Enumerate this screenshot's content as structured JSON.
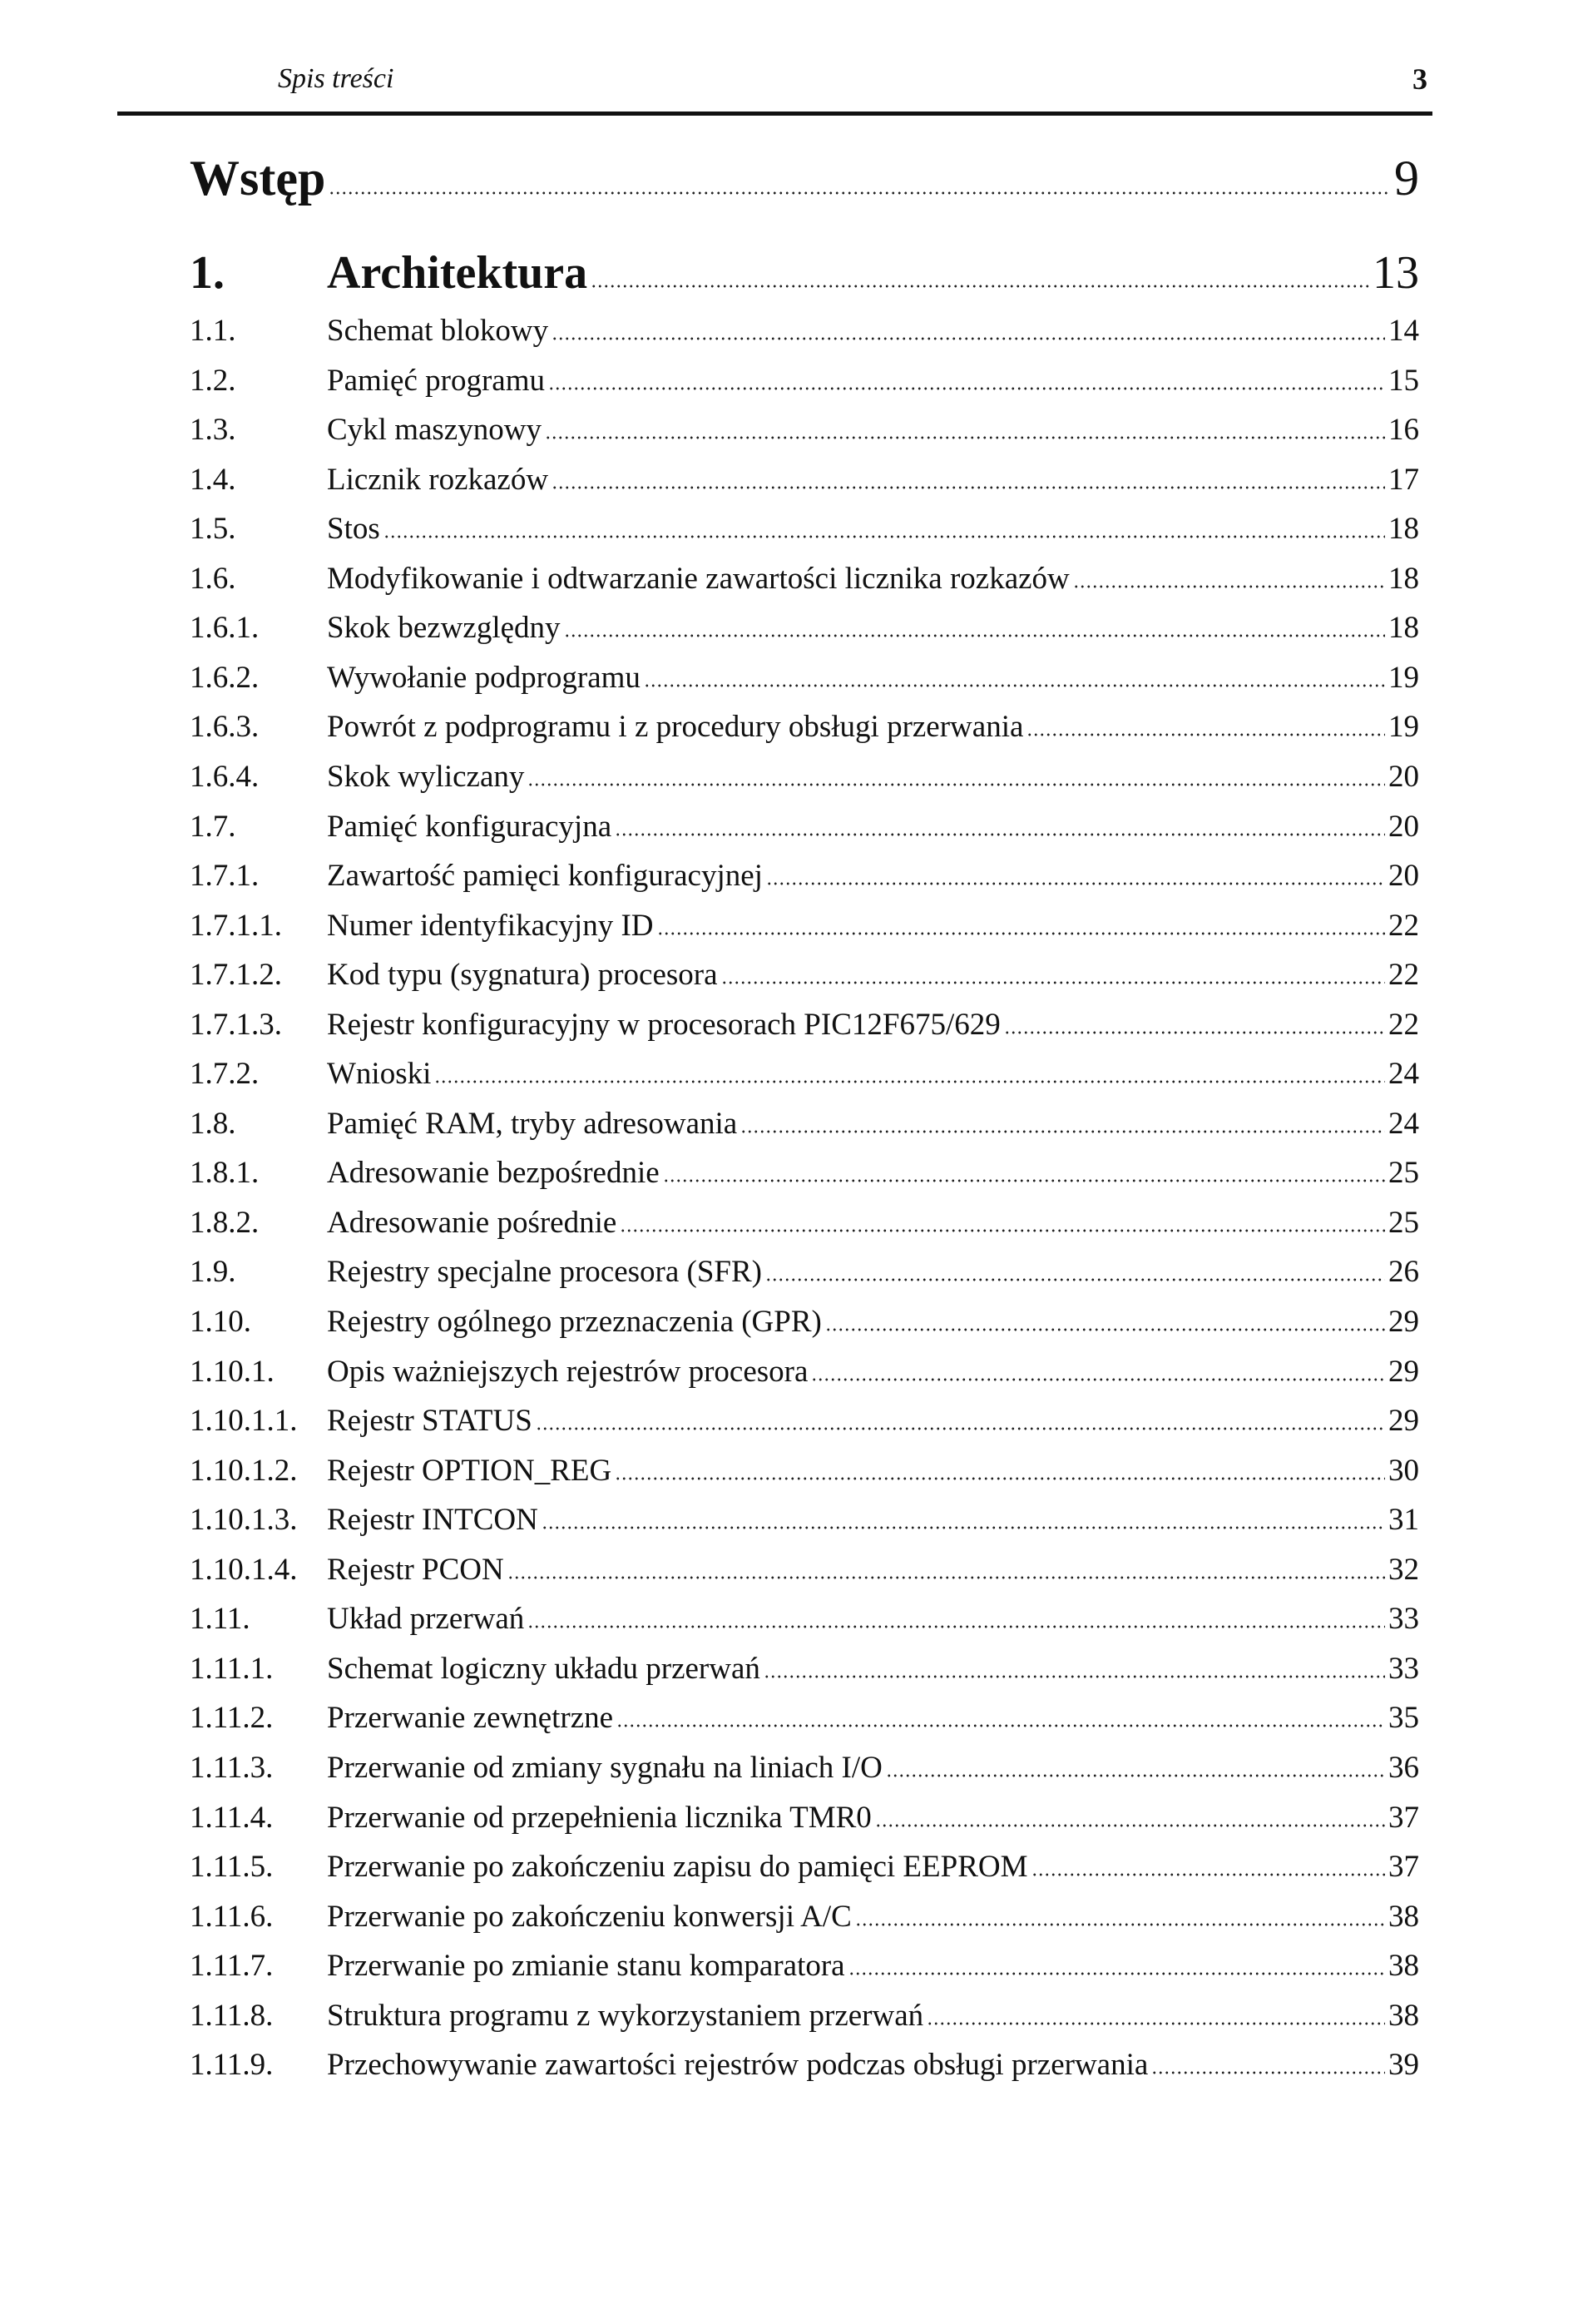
{
  "header": {
    "title": "Spis treści",
    "page_number": "3"
  },
  "intro": {
    "title": "Wstęp",
    "page": "9"
  },
  "chapter": {
    "number": "1.",
    "title": "Architektura",
    "page": "13"
  },
  "entries": [
    {
      "num": "1.1.",
      "title": "Schemat blokowy",
      "page": "14"
    },
    {
      "num": "1.2.",
      "title": "Pamięć programu",
      "page": "15"
    },
    {
      "num": "1.3.",
      "title": "Cykl maszynowy",
      "page": "16"
    },
    {
      "num": "1.4.",
      "title": "Licznik rozkazów",
      "page": "17"
    },
    {
      "num": "1.5.",
      "title": "Stos",
      "page": "18"
    },
    {
      "num": "1.6.",
      "title": "Modyfikowanie i odtwarzanie zawartości licznika rozkazów",
      "page": "18"
    },
    {
      "num": "1.6.1.",
      "title": "Skok bezwzględny",
      "page": "18"
    },
    {
      "num": "1.6.2.",
      "title": "Wywołanie podprogramu",
      "page": "19"
    },
    {
      "num": "1.6.3.",
      "title": "Powrót z podprogramu i z procedury obsługi przerwania",
      "page": "19"
    },
    {
      "num": "1.6.4.",
      "title": "Skok wyliczany",
      "page": "20"
    },
    {
      "num": "1.7.",
      "title": "Pamięć konfiguracyjna",
      "page": "20"
    },
    {
      "num": "1.7.1.",
      "title": "Zawartość pamięci konfiguracyjnej",
      "page": "20"
    },
    {
      "num": "1.7.1.1.",
      "title": "Numer identyfikacyjny ID",
      "page": "22"
    },
    {
      "num": "1.7.1.2.",
      "title": "Kod typu (sygnatura) procesora",
      "page": "22"
    },
    {
      "num": "1.7.1.3.",
      "title": "Rejestr konfiguracyjny w procesorach PIC12F675/629",
      "page": "22"
    },
    {
      "num": "1.7.2.",
      "title": "Wnioski",
      "page": "24"
    },
    {
      "num": "1.8.",
      "title": "Pamięć RAM, tryby adresowania",
      "page": "24"
    },
    {
      "num": "1.8.1.",
      "title": "Adresowanie bezpośrednie",
      "page": "25"
    },
    {
      "num": "1.8.2.",
      "title": "Adresowanie pośrednie",
      "page": "25"
    },
    {
      "num": "1.9.",
      "title": "Rejestry specjalne procesora (SFR)",
      "page": "26"
    },
    {
      "num": "1.10.",
      "title": "Rejestry ogólnego przeznaczenia (GPR)",
      "page": "29"
    },
    {
      "num": "1.10.1.",
      "title": "Opis ważniejszych rejestrów procesora",
      "page": "29"
    },
    {
      "num": "1.10.1.1.",
      "title": "Rejestr STATUS",
      "page": "29"
    },
    {
      "num": "1.10.1.2.",
      "title": "Rejestr OPTION_REG",
      "page": "30"
    },
    {
      "num": "1.10.1.3.",
      "title": "Rejestr INTCON",
      "page": "31"
    },
    {
      "num": "1.10.1.4.",
      "title": "Rejestr PCON",
      "page": "32"
    },
    {
      "num": "1.11.",
      "title": "Układ przerwań",
      "page": "33"
    },
    {
      "num": "1.11.1.",
      "title": "Schemat logiczny układu przerwań",
      "page": "33"
    },
    {
      "num": "1.11.2.",
      "title": "Przerwanie zewnętrzne",
      "page": "35"
    },
    {
      "num": "1.11.3.",
      "title": "Przerwanie od zmiany sygnału na liniach I/O",
      "page": "36"
    },
    {
      "num": "1.11.4.",
      "title": "Przerwanie od przepełnienia licznika TMR0",
      "page": "37"
    },
    {
      "num": "1.11.5.",
      "title": "Przerwanie po zakończeniu zapisu do pamięci EEPROM",
      "page": "37"
    },
    {
      "num": "1.11.6.",
      "title": "Przerwanie po zakończeniu konwersji A/C",
      "page": "38"
    },
    {
      "num": "1.11.7.",
      "title": "Przerwanie po zmianie stanu komparatora",
      "page": "38"
    },
    {
      "num": "1.11.8.",
      "title": "Struktura programu z wykorzystaniem przerwań",
      "page": "38"
    },
    {
      "num": "1.11.9.",
      "title": "Przechowywanie zawartości rejestrów podczas obsługi przerwania",
      "page": "39"
    }
  ]
}
